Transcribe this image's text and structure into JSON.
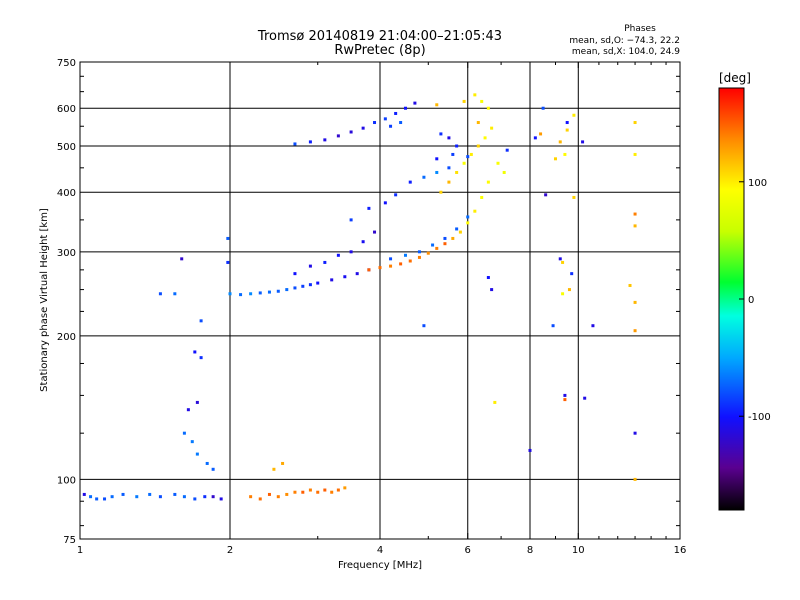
{
  "chart_data": {
    "type": "scatter",
    "title": "Tromsø 20140819 21:04:00–21:05:43",
    "subtitle": "RwPretec (8p)",
    "xlabel": "Frequency [MHz]",
    "ylabel": "Stationary phase Virtual Height [km]",
    "x_scale": "log",
    "y_scale": "log",
    "xlim": [
      1,
      16
    ],
    "ylim": [
      75,
      750
    ],
    "x_ticks": [
      1,
      2,
      4,
      6,
      8,
      10,
      16
    ],
    "y_ticks": [
      75,
      100,
      200,
      300,
      400,
      500,
      600,
      750
    ],
    "x_grid": [
      2,
      4,
      6,
      8,
      10
    ],
    "y_grid": [
      100,
      200,
      300,
      400,
      500,
      600
    ],
    "grid": true,
    "stats_block": {
      "heading": "Phases",
      "line1": "mean, sd,O: −74.3, 22.2",
      "line2": "mean, sd,X: 104.0, 24.9"
    },
    "colorbar": {
      "label": "[deg]",
      "range": [
        -180,
        180
      ],
      "ticks": [
        100,
        0,
        -100
      ],
      "colormap": "rainbow"
    },
    "series": [
      {
        "points": [
          [
            1.02,
            93,
            -110
          ],
          [
            1.05,
            92,
            -70
          ],
          [
            1.08,
            91,
            -75
          ],
          [
            1.12,
            91,
            -80
          ],
          [
            1.16,
            92,
            -70
          ],
          [
            1.22,
            93,
            -75
          ],
          [
            1.3,
            92,
            -65
          ],
          [
            1.38,
            93,
            -70
          ],
          [
            1.45,
            92,
            -80
          ],
          [
            1.55,
            93,
            -75
          ],
          [
            1.62,
            92,
            -70
          ],
          [
            1.7,
            91,
            -80
          ],
          [
            1.78,
            92,
            -90
          ],
          [
            1.85,
            92,
            -120
          ],
          [
            1.92,
            91,
            -110
          ],
          [
            1.62,
            125,
            -70
          ],
          [
            1.68,
            120,
            -65
          ],
          [
            1.72,
            113,
            -65
          ],
          [
            1.65,
            140,
            -110
          ],
          [
            1.72,
            145,
            -115
          ],
          [
            1.7,
            185,
            -100
          ],
          [
            1.75,
            180,
            -90
          ],
          [
            1.8,
            108,
            -70
          ],
          [
            1.85,
            105,
            -75
          ],
          [
            1.6,
            290,
            -120
          ],
          [
            1.45,
            245,
            -80
          ],
          [
            1.55,
            245,
            -70
          ],
          [
            1.75,
            215,
            -80
          ],
          [
            1.98,
            320,
            -75
          ],
          [
            1.98,
            285,
            -90
          ],
          [
            2.0,
            245,
            -60
          ],
          [
            2.1,
            244,
            -70
          ],
          [
            2.2,
            245,
            -60
          ],
          [
            2.3,
            246,
            -75
          ],
          [
            2.4,
            247,
            -70
          ],
          [
            2.5,
            248,
            -75
          ],
          [
            2.6,
            250,
            -70
          ],
          [
            2.7,
            252,
            -80
          ],
          [
            2.8,
            254,
            -85
          ],
          [
            2.9,
            256,
            -90
          ],
          [
            3.0,
            258,
            -100
          ],
          [
            3.2,
            262,
            -110
          ],
          [
            3.4,
            266,
            -105
          ],
          [
            3.6,
            270,
            -110
          ],
          [
            3.8,
            275,
            -120
          ],
          [
            2.7,
            270,
            -100
          ],
          [
            2.9,
            280,
            -110
          ],
          [
            3.1,
            285,
            -95
          ],
          [
            3.3,
            295,
            -100
          ],
          [
            3.5,
            300,
            -110
          ],
          [
            3.7,
            315,
            -105
          ],
          [
            3.9,
            330,
            -120
          ],
          [
            3.5,
            350,
            -85
          ],
          [
            3.8,
            370,
            -95
          ],
          [
            4.1,
            380,
            -100
          ],
          [
            4.3,
            395,
            -90
          ],
          [
            4.6,
            420,
            -95
          ],
          [
            4.9,
            430,
            -70
          ],
          [
            5.2,
            440,
            -60
          ],
          [
            5.5,
            450,
            -80
          ],
          [
            4.2,
            290,
            -80
          ],
          [
            4.5,
            295,
            -65
          ],
          [
            4.8,
            300,
            -75
          ],
          [
            5.1,
            310,
            -70
          ],
          [
            5.4,
            320,
            -80
          ],
          [
            5.7,
            335,
            -75
          ],
          [
            6.0,
            355,
            -70
          ],
          [
            2.7,
            505,
            -80
          ],
          [
            2.9,
            510,
            -95
          ],
          [
            3.1,
            515,
            -110
          ],
          [
            3.3,
            525,
            -120
          ],
          [
            3.5,
            535,
            -115
          ],
          [
            3.7,
            545,
            -110
          ],
          [
            3.9,
            560,
            -90
          ],
          [
            4.1,
            570,
            -85
          ],
          [
            4.3,
            585,
            -95
          ],
          [
            4.5,
            600,
            -100
          ],
          [
            4.7,
            615,
            -110
          ],
          [
            4.4,
            560,
            -75
          ],
          [
            4.2,
            550,
            -85
          ],
          [
            5.3,
            530,
            -90
          ],
          [
            5.5,
            520,
            -110
          ],
          [
            5.7,
            500,
            -95
          ],
          [
            5.2,
            470,
            -100
          ],
          [
            5.6,
            480,
            -85
          ],
          [
            6.0,
            475,
            -80
          ],
          [
            7.2,
            490,
            -90
          ],
          [
            8.2,
            520,
            -100
          ],
          [
            8.5,
            600,
            -80
          ],
          [
            9.5,
            560,
            -100
          ],
          [
            10.2,
            510,
            -110
          ],
          [
            8.6,
            395,
            -120
          ],
          [
            9.2,
            290,
            -110
          ],
          [
            8.9,
            210,
            -80
          ],
          [
            10.7,
            210,
            -110
          ],
          [
            9.4,
            150,
            -110
          ],
          [
            10.3,
            148,
            -110
          ],
          [
            8.0,
            115,
            -110
          ],
          [
            13.0,
            125,
            -110
          ],
          [
            6.6,
            265,
            -100
          ],
          [
            6.7,
            250,
            -110
          ],
          [
            4.9,
            210,
            -80
          ],
          [
            9.7,
            270,
            -90
          ]
        ]
      },
      {
        "points": [
          [
            2.2,
            92,
            140
          ],
          [
            2.3,
            91,
            145
          ],
          [
            2.4,
            93,
            150
          ],
          [
            2.5,
            92,
            140
          ],
          [
            2.6,
            93,
            135
          ],
          [
            2.7,
            94,
            140
          ],
          [
            2.8,
            94,
            150
          ],
          [
            2.9,
            95,
            140
          ],
          [
            3.0,
            94,
            145
          ],
          [
            3.1,
            95,
            150
          ],
          [
            3.2,
            94,
            140
          ],
          [
            3.3,
            95,
            145
          ],
          [
            3.4,
            96,
            130
          ],
          [
            2.45,
            105,
            120
          ],
          [
            2.55,
            108,
            125
          ],
          [
            3.8,
            275,
            150
          ],
          [
            4.0,
            278,
            145
          ],
          [
            4.2,
            280,
            140
          ],
          [
            4.4,
            283,
            150
          ],
          [
            4.6,
            287,
            145
          ],
          [
            4.8,
            292,
            140
          ],
          [
            5.0,
            298,
            135
          ],
          [
            5.2,
            305,
            140
          ],
          [
            5.4,
            312,
            150
          ],
          [
            5.6,
            320,
            125
          ],
          [
            5.8,
            330,
            110
          ],
          [
            6.0,
            345,
            95
          ],
          [
            6.2,
            365,
            100
          ],
          [
            6.4,
            390,
            90
          ],
          [
            6.6,
            420,
            95
          ],
          [
            5.3,
            400,
            110
          ],
          [
            5.5,
            420,
            120
          ],
          [
            5.7,
            440,
            105
          ],
          [
            5.9,
            460,
            90
          ],
          [
            6.1,
            480,
            100
          ],
          [
            6.3,
            500,
            110
          ],
          [
            6.5,
            520,
            95
          ],
          [
            6.7,
            545,
            100
          ],
          [
            6.9,
            460,
            90
          ],
          [
            7.1,
            440,
            85
          ],
          [
            5.9,
            620,
            110
          ],
          [
            6.2,
            640,
            100
          ],
          [
            6.4,
            620,
            90
          ],
          [
            6.6,
            600,
            95
          ],
          [
            6.3,
            560,
            120
          ],
          [
            5.2,
            610,
            120
          ],
          [
            8.4,
            530,
            130
          ],
          [
            9.2,
            510,
            120
          ],
          [
            9.5,
            540,
            110
          ],
          [
            9.8,
            580,
            100
          ],
          [
            9.0,
            470,
            110
          ],
          [
            9.4,
            480,
            95
          ],
          [
            9.8,
            390,
            110
          ],
          [
            13.0,
            560,
            110
          ],
          [
            13.0,
            480,
            100
          ],
          [
            13.0,
            360,
            140
          ],
          [
            13.0,
            340,
            120
          ],
          [
            12.7,
            255,
            115
          ],
          [
            13.0,
            235,
            120
          ],
          [
            13.0,
            205,
            130
          ],
          [
            9.3,
            285,
            110
          ],
          [
            9.6,
            250,
            120
          ],
          [
            9.3,
            245,
            90
          ],
          [
            6.8,
            145,
            100
          ],
          [
            13.0,
            100,
            120
          ],
          [
            9.4,
            147,
            150
          ]
        ]
      }
    ]
  }
}
